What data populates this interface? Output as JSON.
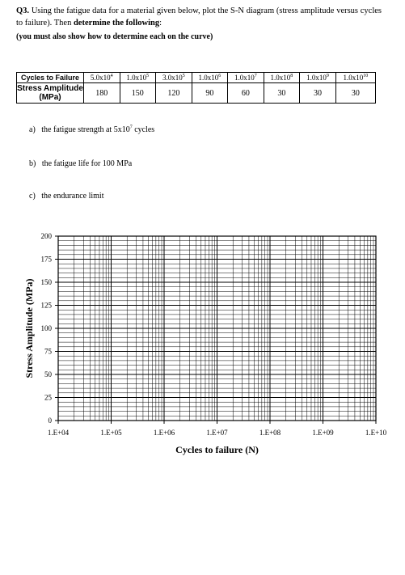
{
  "question": {
    "number": "Q3.",
    "text_a": "Using the fatigue data for a material given below, plot the S-N diagram (stress amplitude versus cycles to failure). Then ",
    "text_b": "determine the following",
    "text_c": ":",
    "note": "(you must also show how to determine each on the curve)"
  },
  "table": {
    "row1_label": "Cycles to Failure",
    "row2_label": "Stress Amplitude (MPa)",
    "cycles": [
      {
        "mant": "5.0x10",
        "exp": "4"
      },
      {
        "mant": "1.0x10",
        "exp": "5"
      },
      {
        "mant": "3.0x10",
        "exp": "5"
      },
      {
        "mant": "1.0x10",
        "exp": "6"
      },
      {
        "mant": "1.0x10",
        "exp": "7"
      },
      {
        "mant": "1.0x10",
        "exp": "8"
      },
      {
        "mant": "1.0x10",
        "exp": "9"
      },
      {
        "mant": "1.0x10",
        "exp": "10"
      }
    ],
    "stress": [
      "180",
      "150",
      "120",
      "90",
      "60",
      "30",
      "30",
      "30"
    ]
  },
  "parts": [
    {
      "label": "a)",
      "text": "the fatigue strength at 5x10",
      "exp": "7",
      "suffix": " cycles"
    },
    {
      "label": "b)",
      "text": "the fatigue life for 100 MPa",
      "exp": "",
      "suffix": ""
    },
    {
      "label": "c)",
      "text": "the endurance limit",
      "exp": "",
      "suffix": ""
    }
  ],
  "chart_data": {
    "type": "scatter",
    "xscale": "log",
    "xlim": [
      10000,
      10000000000
    ],
    "ylim": [
      0,
      200
    ],
    "x_ticks": [
      "1.E+04",
      "1.E+05",
      "1.E+06",
      "1.E+07",
      "1.E+08",
      "1.E+09",
      "1.E+10"
    ],
    "y_ticks": [
      0,
      25,
      50,
      75,
      100,
      125,
      150,
      175,
      200
    ],
    "y_minor_step": 5,
    "xlabel": "Cycles to failure (N)",
    "ylabel": "Stress Amplitude (MPa)",
    "grid": true,
    "series": []
  }
}
